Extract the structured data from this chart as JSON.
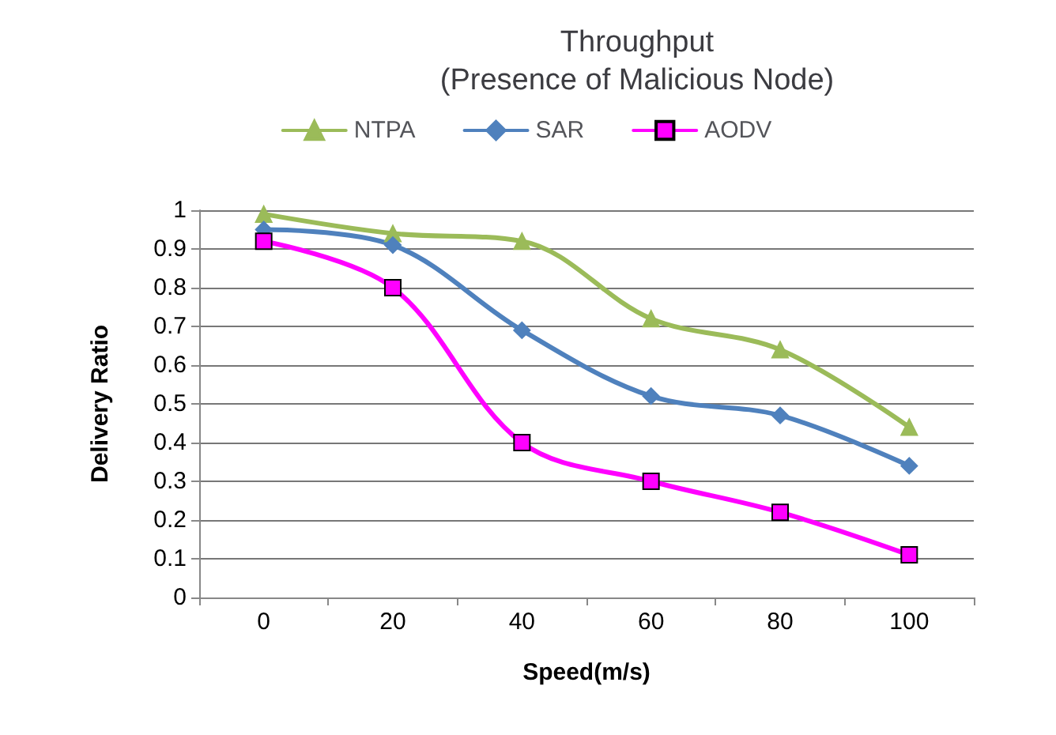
{
  "chart_data": {
    "type": "line",
    "title": "Throughput\n(Presence of Malicious Node)",
    "xlabel": "Speed(m/s)",
    "ylabel": "Delivery Ratio",
    "categories": [
      "0",
      "20",
      "40",
      "60",
      "80",
      "100"
    ],
    "series": [
      {
        "name": "NTPA",
        "color": "#9bbb59",
        "marker": "triangle",
        "values": [
          0.99,
          0.94,
          0.92,
          0.72,
          0.64,
          0.44
        ]
      },
      {
        "name": "SAR",
        "color": "#4f81bd",
        "marker": "diamond",
        "values": [
          0.95,
          0.91,
          0.69,
          0.52,
          0.47,
          0.34
        ]
      },
      {
        "name": "AODV",
        "color": "#ff00ff",
        "marker": "square",
        "values": [
          0.92,
          0.8,
          0.4,
          0.3,
          0.22,
          0.11
        ]
      }
    ],
    "ylim": [
      0,
      1
    ],
    "yticks": [
      0,
      0.1,
      0.2,
      0.3,
      0.4,
      0.5,
      0.6,
      0.7,
      0.8,
      0.9,
      1
    ],
    "grid": "y",
    "legend": "top"
  }
}
